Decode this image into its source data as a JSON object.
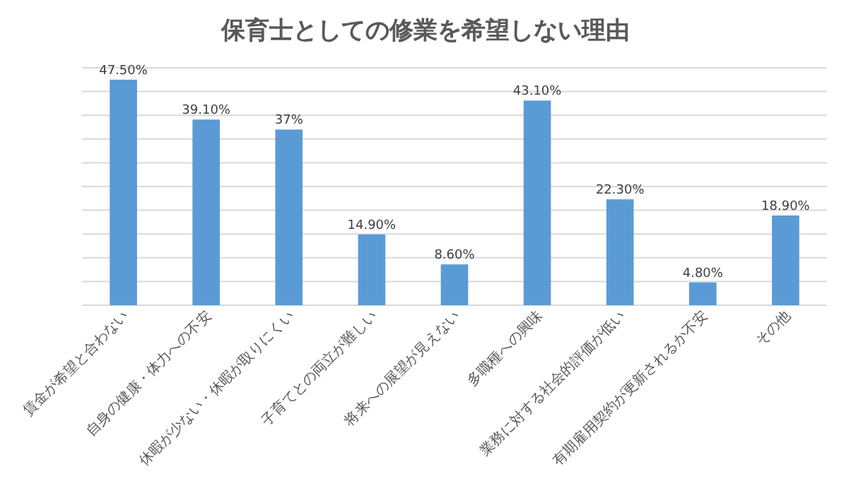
{
  "chart_data": {
    "type": "bar",
    "title": "保育士としての修業を希望しない理由",
    "categories": [
      "賃金が希望と合わない",
      "自身の健康・体力への不安",
      "休暇が少ない・休暇が取りにくい",
      "子育てとの両立が難しい",
      "将来への展望が見えない",
      "多職種への興味",
      "業務に対する社会的評価が低い",
      "有期雇用契約が更新されるか不安",
      "その他"
    ],
    "values": [
      47.5,
      39.1,
      37,
      14.9,
      8.6,
      43.1,
      22.3,
      4.8,
      18.9
    ],
    "value_labels": [
      "47.50%",
      "39.10%",
      "37%",
      "14.90%",
      "8.60%",
      "43.10%",
      "22.30%",
      "4.80%",
      "18.90%"
    ],
    "color": "#5b9bd5",
    "ylim": [
      0,
      50
    ],
    "yticks": [
      {
        "value": 0,
        "label": null
      },
      {
        "value": 5,
        "label": null
      },
      {
        "value": 10,
        "label": null
      },
      {
        "value": 15,
        "label": null
      },
      {
        "value": 20,
        "label": null
      },
      {
        "value": 25,
        "label": null
      },
      {
        "value": 30,
        "label": null
      },
      {
        "value": 35,
        "label": null
      },
      {
        "value": 40,
        "label": null
      },
      {
        "value": 45,
        "label": null
      },
      {
        "value": 50,
        "label": null
      }
    ],
    "grid": "y",
    "tick_labels": "x"
  }
}
